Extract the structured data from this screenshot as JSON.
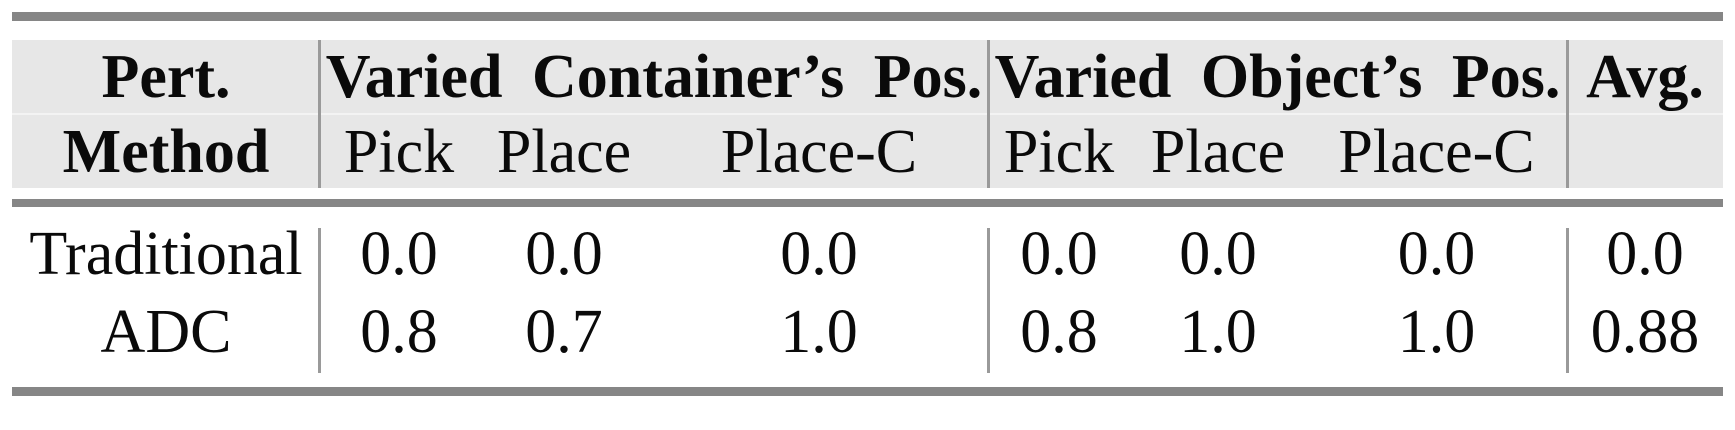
{
  "table": {
    "header": {
      "method_label_line1": "Pert.",
      "method_label_line2": "Method",
      "group1_title": "Varied Container’s Pos.",
      "group2_title": "Varied Object’s Pos.",
      "avg_label": "Avg.",
      "group1_subcolumns": [
        "Pick",
        "Place",
        "Place-C"
      ],
      "group2_subcolumns": [
        "Pick",
        "Place",
        "Place-C"
      ]
    },
    "rows": [
      {
        "method": "Traditional",
        "container_pos": [
          "0.0",
          "0.0",
          "0.0"
        ],
        "object_pos": [
          "0.0",
          "0.0",
          "0.0"
        ],
        "avg": "0.0"
      },
      {
        "method": "ADC",
        "container_pos": [
          "0.8",
          "0.7",
          "1.0"
        ],
        "object_pos": [
          "0.8",
          "1.0",
          "1.0"
        ],
        "avg": "0.88"
      }
    ],
    "colors": {
      "header_background": "#e7e7e7",
      "rule_color": "#868686",
      "column_separator_color": "#9a9a9a",
      "text_color": "#0a0a0a"
    }
  },
  "chart_data": {
    "type": "table",
    "column_groups": [
      "Pert. Method",
      "Varied Container's Pos.",
      "Varied Object's Pos.",
      "Avg."
    ],
    "columns": [
      "Pert. Method",
      "Container Pick",
      "Container Place",
      "Container Place-C",
      "Object Pick",
      "Object Place",
      "Object Place-C",
      "Avg."
    ],
    "rows": [
      [
        "Traditional",
        0.0,
        0.0,
        0.0,
        0.0,
        0.0,
        0.0,
        0.0
      ],
      [
        "ADC",
        0.8,
        0.7,
        1.0,
        0.8,
        1.0,
        1.0,
        0.88
      ]
    ]
  }
}
